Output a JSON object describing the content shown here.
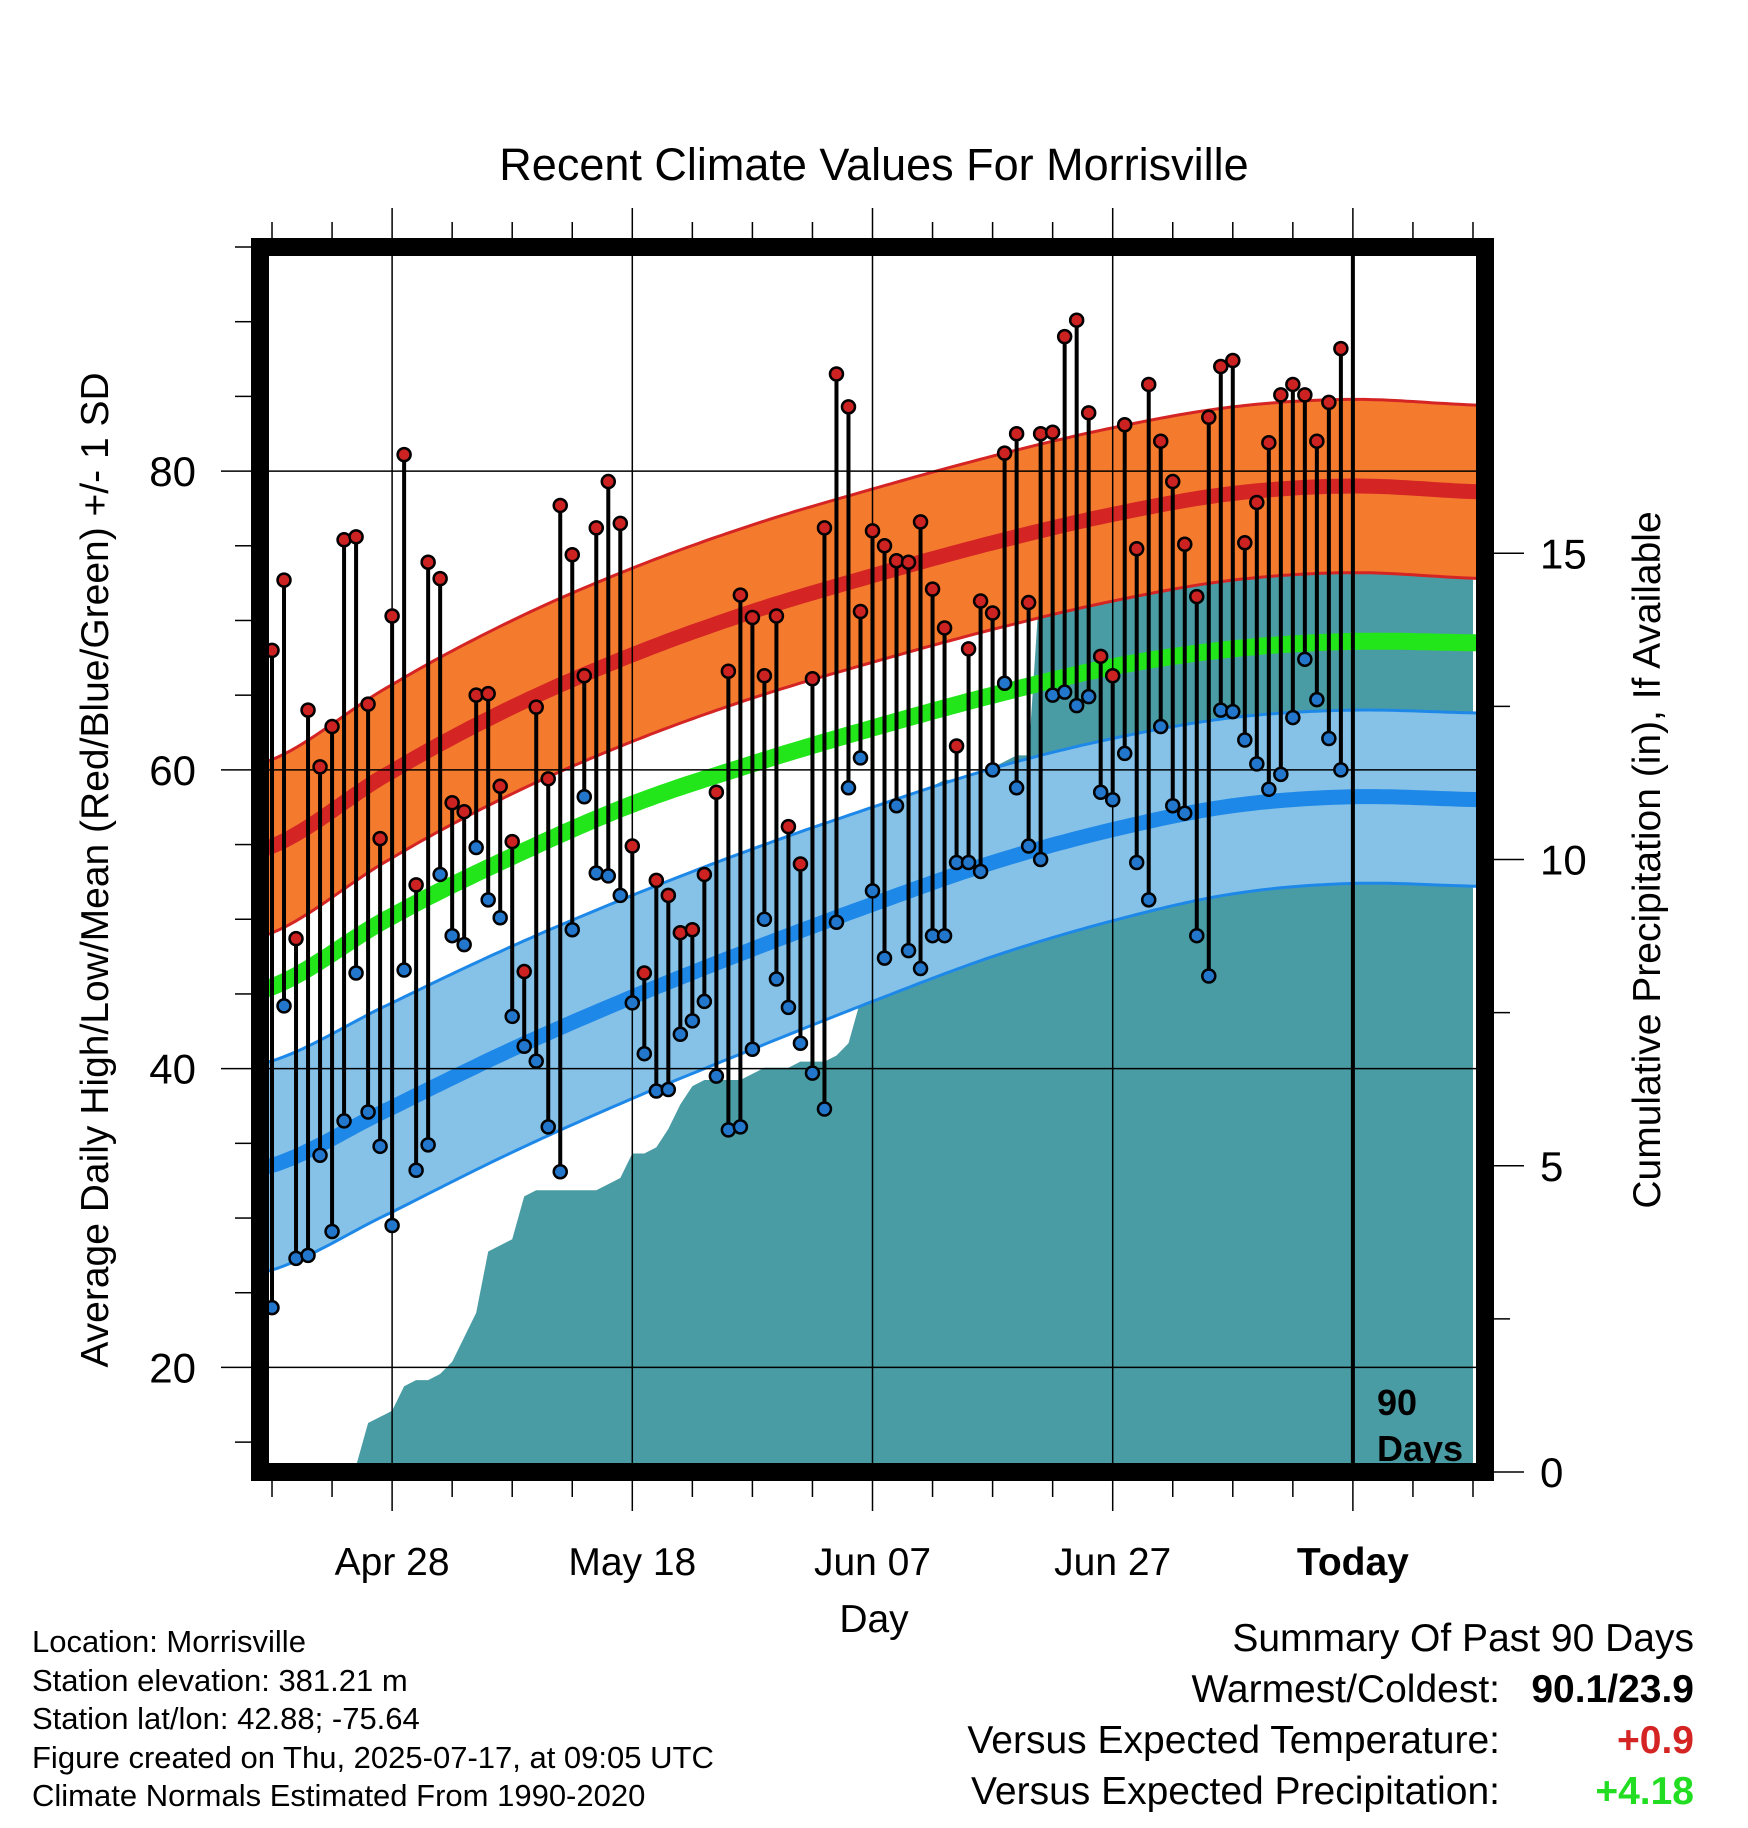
{
  "chart_data": {
    "type": "line",
    "title": "Recent Climate Values For Morrisville",
    "xlabel": "Day",
    "ylabel": "Average Daily High/Low/Mean (Red/Blue/Green) +/- 1 SD",
    "y2label": "Cumulative Precipitation (in), If Available",
    "ylim": [
      13,
      95
    ],
    "y2lim": [
      0,
      20
    ],
    "yticks": [
      "20",
      "40",
      "60",
      "80"
    ],
    "y2ticks": [
      "0",
      "5",
      "10",
      "15"
    ],
    "xlim": [
      -1,
      101
    ],
    "xticks": [
      {
        "day": 10,
        "label": "Apr 28"
      },
      {
        "day": 30,
        "label": "May 18"
      },
      {
        "day": 50,
        "label": "Jun 07"
      },
      {
        "day": 70,
        "label": "Jun 27"
      },
      {
        "day": 90,
        "label": "Today"
      }
    ],
    "today_marker": {
      "day": 90,
      "label_line1": "90",
      "label_line2": "Days"
    },
    "grid": true,
    "normals_days": [
      -1,
      10,
      20,
      30,
      40,
      50,
      60,
      70,
      80,
      90,
      101
    ],
    "normal_high": [
      54.6,
      59.9,
      64.2,
      67.7,
      70.6,
      73.0,
      75.2,
      77.1,
      78.5,
      79.0,
      78.6
    ],
    "normal_high_sd": [
      5.8,
      5.8,
      5.8,
      5.8,
      5.8,
      5.8,
      5.8,
      5.8,
      5.8,
      5.8,
      5.8
    ],
    "normal_low": [
      33.3,
      37.4,
      41.3,
      44.8,
      48.0,
      51.0,
      53.8,
      56.0,
      57.6,
      58.2,
      58.0
    ],
    "normal_low_sd": [
      7.0,
      7.0,
      6.9,
      6.8,
      6.7,
      6.5,
      6.3,
      6.1,
      5.9,
      5.8,
      5.8
    ],
    "normal_mean": [
      45.2,
      50.2,
      54.2,
      57.7,
      60.4,
      62.8,
      65.0,
      66.9,
      68.1,
      68.6,
      68.5
    ],
    "observations": [
      {
        "day": 0,
        "high": 68,
        "low": 24
      },
      {
        "day": 1,
        "high": 72.7,
        "low": 44.2
      },
      {
        "day": 2,
        "high": 48.7,
        "low": 27.3
      },
      {
        "day": 3,
        "high": 64,
        "low": 27.5
      },
      {
        "day": 4,
        "high": 60.2,
        "low": 34.2
      },
      {
        "day": 5,
        "high": 62.9,
        "low": 29.1
      },
      {
        "day": 6,
        "high": 75.4,
        "low": 36.5
      },
      {
        "day": 7,
        "high": 75.6,
        "low": 46.4
      },
      {
        "day": 8,
        "high": 64.4,
        "low": 37.1
      },
      {
        "day": 9,
        "high": 55.4,
        "low": 34.8
      },
      {
        "day": 10,
        "high": 70.3,
        "low": 29.5
      },
      {
        "day": 11,
        "high": 81.1,
        "low": 46.6
      },
      {
        "day": 12,
        "high": 52.3,
        "low": 33.2
      },
      {
        "day": 13,
        "high": 73.9,
        "low": 34.9
      },
      {
        "day": 14,
        "high": 72.8,
        "low": 53
      },
      {
        "day": 15,
        "high": 57.8,
        "low": 48.9
      },
      {
        "day": 16,
        "high": 57.2,
        "low": 48.3
      },
      {
        "day": 17,
        "high": 65,
        "low": 54.8
      },
      {
        "day": 18,
        "high": 65.1,
        "low": 51.3
      },
      {
        "day": 19,
        "high": 58.9,
        "low": 50.1
      },
      {
        "day": 20,
        "high": 55.2,
        "low": 43.5
      },
      {
        "day": 21,
        "high": 46.5,
        "low": 41.5
      },
      {
        "day": 22,
        "high": 64.2,
        "low": 40.5
      },
      {
        "day": 23,
        "high": 59.4,
        "low": 36.1
      },
      {
        "day": 24,
        "high": 77.7,
        "low": 33.1
      },
      {
        "day": 25,
        "high": 74.4,
        "low": 49.3
      },
      {
        "day": 26,
        "high": 66.3,
        "low": 58.2
      },
      {
        "day": 27,
        "high": 76.2,
        "low": 53.1
      },
      {
        "day": 28,
        "high": 79.3,
        "low": 52.9
      },
      {
        "day": 29,
        "high": 76.5,
        "low": 51.6
      },
      {
        "day": 30,
        "high": 54.9,
        "low": 44.4
      },
      {
        "day": 31,
        "high": 46.4,
        "low": 41
      },
      {
        "day": 32,
        "high": 52.6,
        "low": 38.5
      },
      {
        "day": 33,
        "high": 51.6,
        "low": 38.6
      },
      {
        "day": 34,
        "high": 49.1,
        "low": 42.3
      },
      {
        "day": 35,
        "high": 49.3,
        "low": 43.2
      },
      {
        "day": 36,
        "high": 53,
        "low": 44.5
      },
      {
        "day": 37,
        "high": 58.5,
        "low": 39.5
      },
      {
        "day": 38,
        "high": 66.6,
        "low": 35.9
      },
      {
        "day": 39,
        "high": 71.7,
        "low": 36.1
      },
      {
        "day": 40,
        "high": 70.2,
        "low": 41.3
      },
      {
        "day": 41,
        "high": 66.3,
        "low": 50
      },
      {
        "day": 42,
        "high": 70.3,
        "low": 46
      },
      {
        "day": 43,
        "high": 56.2,
        "low": 44.1
      },
      {
        "day": 44,
        "high": 53.7,
        "low": 41.7
      },
      {
        "day": 45,
        "high": 66.1,
        "low": 39.7
      },
      {
        "day": 46,
        "high": 76.2,
        "low": 37.3
      },
      {
        "day": 47,
        "high": 86.5,
        "low": 49.8
      },
      {
        "day": 48,
        "high": 84.3,
        "low": 58.8
      },
      {
        "day": 49,
        "high": 70.6,
        "low": 60.8
      },
      {
        "day": 50,
        "high": 76,
        "low": 51.9
      },
      {
        "day": 51,
        "high": 75,
        "low": 47.4
      },
      {
        "day": 52,
        "high": 74,
        "low": 57.6
      },
      {
        "day": 53,
        "high": 73.9,
        "low": 47.9
      },
      {
        "day": 54,
        "high": 76.6,
        "low": 46.7
      },
      {
        "day": 55,
        "high": 72.1,
        "low": 48.9
      },
      {
        "day": 56,
        "high": 69.5,
        "low": 48.9
      },
      {
        "day": 57,
        "high": 61.6,
        "low": 53.8
      },
      {
        "day": 58,
        "high": 68.1,
        "low": 53.8
      },
      {
        "day": 59,
        "high": 71.3,
        "low": 53.2
      },
      {
        "day": 60,
        "high": 70.5,
        "low": 60
      },
      {
        "day": 61,
        "high": 81.2,
        "low": 65.8
      },
      {
        "day": 62,
        "high": 82.5,
        "low": 58.8
      },
      {
        "day": 63,
        "high": 71.2,
        "low": 54.9
      },
      {
        "day": 64,
        "high": 82.5,
        "low": 54
      },
      {
        "day": 65,
        "high": 82.6,
        "low": 65
      },
      {
        "day": 66,
        "high": 89,
        "low": 65.2
      },
      {
        "day": 67,
        "high": 90.1,
        "low": 64.3
      },
      {
        "day": 68,
        "high": 83.9,
        "low": 64.9
      },
      {
        "day": 69,
        "high": 67.6,
        "low": 58.5
      },
      {
        "day": 70,
        "high": 66.3,
        "low": 58
      },
      {
        "day": 71,
        "high": 83.1,
        "low": 61.1
      },
      {
        "day": 72,
        "high": 74.8,
        "low": 53.8
      },
      {
        "day": 73,
        "high": 85.8,
        "low": 51.3
      },
      {
        "day": 74,
        "high": 82,
        "low": 62.9
      },
      {
        "day": 75,
        "high": 79.3,
        "low": 57.6
      },
      {
        "day": 76,
        "high": 75.1,
        "low": 57.1
      },
      {
        "day": 77,
        "high": 71.6,
        "low": 48.9
      },
      {
        "day": 78,
        "high": 83.6,
        "low": 46.2
      },
      {
        "day": 79,
        "high": 87,
        "low": 64
      },
      {
        "day": 80,
        "high": 87.4,
        "low": 63.9
      },
      {
        "day": 81,
        "high": 75.2,
        "low": 62
      },
      {
        "day": 82,
        "high": 77.9,
        "low": 60.4
      },
      {
        "day": 83,
        "high": 81.9,
        "low": 58.7
      },
      {
        "day": 84,
        "high": 85.1,
        "low": 59.7
      },
      {
        "day": 85,
        "high": 85.8,
        "low": 63.5
      },
      {
        "day": 86,
        "high": 85.1,
        "low": 67.4
      },
      {
        "day": 87,
        "high": 82,
        "low": 64.7
      },
      {
        "day": 88,
        "high": 84.6,
        "low": 62.1
      },
      {
        "day": 89,
        "high": 88.2,
        "low": 60
      }
    ],
    "precipitation": {
      "days": [
        0,
        2,
        5,
        7,
        8,
        9,
        10,
        11,
        12,
        13,
        14,
        15,
        16,
        17,
        18,
        19,
        20,
        21,
        22,
        23,
        24,
        25,
        26,
        27,
        28,
        29,
        30,
        31,
        32,
        33,
        34,
        35,
        36,
        37,
        38,
        39,
        40,
        41,
        42,
        43,
        44,
        45,
        46,
        47,
        48,
        49,
        50,
        51,
        52,
        53,
        54,
        55,
        56,
        57,
        58,
        59,
        60,
        61,
        62,
        63,
        64,
        65,
        66,
        67,
        68,
        69,
        70,
        71,
        72,
        73,
        74,
        75,
        76,
        77,
        78,
        79,
        80,
        81,
        82,
        83,
        84,
        85,
        86,
        87,
        88,
        89,
        90,
        95,
        100
      ],
      "values": [
        0.0,
        0.05,
        0.1,
        0.1,
        0.8,
        0.9,
        1.0,
        1.4,
        1.5,
        1.5,
        1.6,
        1.8,
        2.2,
        2.6,
        3.6,
        3.7,
        3.8,
        4.5,
        4.6,
        4.6,
        4.6,
        4.6,
        4.6,
        4.6,
        4.7,
        4.8,
        5.2,
        5.2,
        5.3,
        5.6,
        6.0,
        6.3,
        6.4,
        6.4,
        6.4,
        6.4,
        6.5,
        6.6,
        6.6,
        6.6,
        6.7,
        6.7,
        6.7,
        6.8,
        7.0,
        7.7,
        9.5,
        10.0,
        10.8,
        10.9,
        10.9,
        11.2,
        11.3,
        11.3,
        11.3,
        11.3,
        11.5,
        11.6,
        11.7,
        11.7,
        14.7,
        14.8,
        14.8,
        14.9,
        14.9,
        15.1,
        15.4,
        15.4,
        15.4,
        15.4,
        15.4,
        15.5,
        15.5,
        15.5,
        15.6,
        15.6,
        15.7,
        15.7,
        15.7,
        15.8,
        15.9,
        15.9,
        15.9,
        15.9,
        15.9,
        15.9,
        15.9,
        15.9,
        15.9
      ]
    }
  },
  "colors": {
    "high_band": "#f47a2e",
    "high_line": "#d42424",
    "mean_line": "#22e61a",
    "low_band": "#86c2e8",
    "low_line": "#1e88e8",
    "precip": "#4a9ca4",
    "high_dot": "#cc2222",
    "low_dot": "#2277cc"
  },
  "info": {
    "location": "Location: Morrisville",
    "elevation": "Station elevation: 381.21 m",
    "latlon": "Station lat/lon: 42.88; -75.64",
    "created": "Figure created on Thu, 2025-07-17, at 09:05 UTC",
    "normals": "Climate Normals Estimated From 1990-2020"
  },
  "summary": {
    "heading": "Summary Of Past 90 Days",
    "warm_cold_label": "Warmest/Coldest:",
    "warm_cold_value": "90.1/23.9",
    "temp_label": "Versus Expected Temperature:",
    "temp_value": "+0.9",
    "temp_color": "#d42424",
    "precip_label": "Versus Expected Precipitation:",
    "precip_value": "+4.18",
    "precip_color": "#22dd22"
  }
}
